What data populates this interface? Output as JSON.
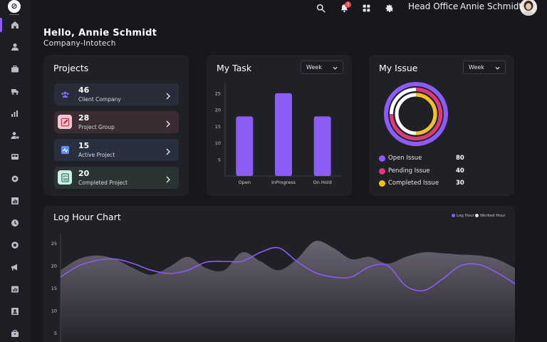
{
  "sidebar": {
    "items": [
      {
        "icon": "home-icon",
        "active": true
      },
      {
        "icon": "user-icon"
      },
      {
        "icon": "briefcase-icon"
      },
      {
        "icon": "truck-icon"
      },
      {
        "icon": "chart-icon"
      },
      {
        "icon": "user-lock-icon"
      },
      {
        "icon": "grid-icon"
      },
      {
        "icon": "settings-icon"
      },
      {
        "icon": "bar-chart-icon"
      },
      {
        "icon": "clock-icon"
      },
      {
        "icon": "gear-icon"
      },
      {
        "icon": "megaphone-icon"
      },
      {
        "icon": "report-icon"
      },
      {
        "icon": "contact-icon"
      },
      {
        "icon": "briefcase-alt-icon"
      }
    ]
  },
  "header": {
    "notification_count": "3",
    "office": "Head Office",
    "user_name": "Annie Schmidt"
  },
  "greeting": {
    "title": "Hello, Annie Schmidt",
    "company": "Company-Intotech"
  },
  "projects": {
    "title": "Projects",
    "items": [
      {
        "count": "46",
        "label": "Client Company",
        "icon": "users-icon",
        "icon_color": "#7c6cf0",
        "bg": "#2a2c3a"
      },
      {
        "count": "28",
        "label": "Project Group",
        "icon": "edit-icon",
        "icon_color": "#e8587a",
        "bg": "#3a2c32"
      },
      {
        "count": "15",
        "label": "Active Project",
        "icon": "activity-icon",
        "icon_color": "#5b8ef0",
        "bg": "#2a2f3e"
      },
      {
        "count": "20",
        "label": "Completed Project",
        "icon": "checklist-icon",
        "icon_color": "#6fcfb8",
        "bg": "#2a3533"
      }
    ]
  },
  "my_task": {
    "title": "My Task",
    "dropdown": "Week",
    "chart_data": {
      "type": "bar",
      "categories": [
        "Open",
        "InProgress",
        "On Hold"
      ],
      "values": [
        18,
        25,
        18
      ],
      "yticks": [
        5,
        10,
        15,
        20,
        25
      ],
      "ylim": [
        0,
        28
      ],
      "color": "#8b5cf6"
    }
  },
  "my_issue": {
    "title": "My Issue",
    "dropdown": "Week",
    "legend": [
      {
        "label": "Open Issue",
        "value": "80",
        "color": "#8b5cf6"
      },
      {
        "label": "Pending Issue",
        "value": "40",
        "color": "#e0367a"
      },
      {
        "label": "Completed Issue",
        "value": "30",
        "color": "#f5c21b"
      }
    ]
  },
  "log_hour": {
    "title": "Log Hour Chart",
    "legend": [
      {
        "label": "Log Hour",
        "color": "#8b5cf6"
      },
      {
        "label": "Worked Hour",
        "color": "#d8d8e0"
      }
    ],
    "chart_data": {
      "type": "line",
      "yticks": [
        5,
        10,
        15,
        20,
        25
      ],
      "ylim": [
        3,
        27
      ],
      "x": [
        0,
        0.04,
        0.08,
        0.12,
        0.16,
        0.2,
        0.24,
        0.28,
        0.32,
        0.36,
        0.4,
        0.44,
        0.48,
        0.52,
        0.56,
        0.6,
        0.64,
        0.68,
        0.72,
        0.76,
        0.8,
        0.84,
        0.88,
        0.92,
        0.96,
        1.0
      ],
      "series": [
        {
          "name": "Log Hour",
          "color": "#8b5cf6",
          "values": [
            17.5,
            20,
            21.2,
            21.5,
            20.5,
            19,
            18.3,
            19,
            20.8,
            21,
            21,
            23,
            24,
            21,
            18.5,
            17.5,
            17.5,
            19.8,
            20,
            15.5,
            14.5,
            17,
            20,
            20.3,
            18.5,
            16
          ]
        },
        {
          "name": "Worked Hour",
          "color": "#6a6472",
          "values": [
            19,
            21.5,
            22.3,
            21.5,
            19.5,
            18,
            19.8,
            22,
            19.5,
            19,
            23,
            21,
            19,
            21.5,
            25.5,
            24,
            21.5,
            22,
            20.5,
            22,
            23,
            22.8,
            22.5,
            22.3,
            21.5,
            19.5
          ]
        }
      ]
    }
  }
}
